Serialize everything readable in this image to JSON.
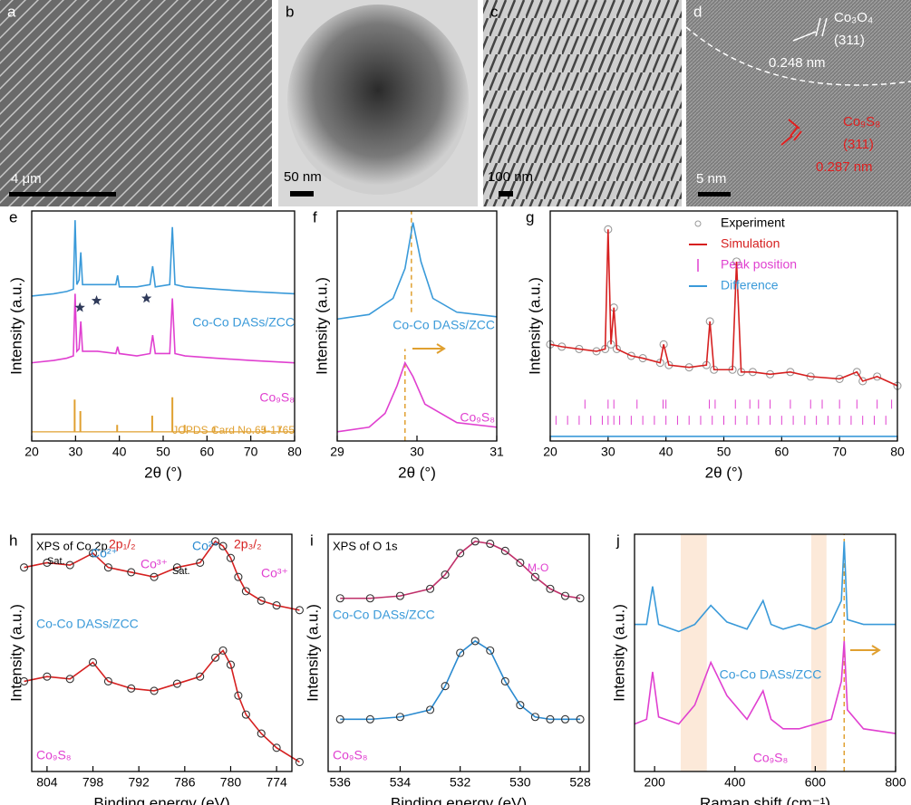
{
  "images": [
    {
      "letter": "a",
      "texts": [
        {
          "text": "4 μm",
          "color": "#ffffff"
        }
      ]
    },
    {
      "letter": "b",
      "texts": [
        {
          "text": "50 nm",
          "color": "#000000"
        }
      ]
    },
    {
      "letter": "c",
      "texts": [
        {
          "text": "100 nm",
          "color": "#000000"
        }
      ]
    },
    {
      "letter": "d",
      "texts": [
        {
          "text": "5 nm",
          "color": "#ffffff"
        },
        {
          "text": "Co₃O₄",
          "color": "#ffffff"
        },
        {
          "text": "(311)",
          "color": "#ffffff"
        },
        {
          "text": "0.248 nm",
          "color": "#ffffff"
        },
        {
          "text": "Co₉S₈",
          "color": "#e02020"
        },
        {
          "text": "(311)",
          "color": "#e02020"
        },
        {
          "text": "0.287 nm",
          "color": "#e02020"
        }
      ]
    }
  ],
  "chart_data": [
    {
      "type": "line",
      "panel": "e",
      "xlabel": "2θ (°)",
      "ylabel": "Intensity (a.u.)",
      "xlim": [
        20,
        80
      ],
      "ylim": [
        0,
        100
      ],
      "xticks": [
        20,
        30,
        40,
        50,
        60,
        70,
        80
      ],
      "series": [
        {
          "color": "#3a9ad9",
          "style": "line",
          "x": [
            20,
            25,
            28,
            29.5,
            29.9,
            30.3,
            30.8,
            31.2,
            31.6,
            35,
            39.2,
            39.6,
            40,
            44,
            47,
            47.6,
            48.2,
            51.5,
            52.1,
            52.7,
            55,
            62,
            70,
            80
          ],
          "values": [
            63,
            64,
            65,
            66,
            96,
            68,
            70,
            82,
            68,
            68,
            68,
            72,
            67,
            67,
            68,
            76,
            67,
            68,
            93,
            68,
            67,
            66,
            65,
            64
          ]
        },
        {
          "color": "#e040d0",
          "style": "line",
          "x": [
            20,
            25,
            28,
            29.5,
            29.9,
            30.3,
            30.8,
            31.2,
            31.6,
            35,
            39.2,
            39.6,
            40,
            44,
            47,
            47.6,
            48.2,
            51.5,
            52.1,
            52.7,
            55,
            62,
            70,
            80
          ],
          "values": [
            34,
            35,
            36,
            37,
            64,
            39,
            40,
            52,
            39,
            39,
            38,
            41,
            38,
            37,
            38,
            46,
            38,
            38,
            62,
            38,
            37,
            36,
            35,
            34
          ]
        },
        {
          "color": "#e0a030",
          "style": "sticks",
          "baseline": 4,
          "x": [
            29.8,
            31.1,
            39.5,
            47.5,
            52.1,
            54.9,
            61.7,
            73.2,
            76.6
          ],
          "values": [
            14,
            9,
            3,
            7,
            15,
            3,
            2,
            2,
            2
          ]
        }
      ],
      "stars": {
        "color": "#2f3a5a",
        "x": [
          31,
          34.8,
          46.2
        ],
        "values": [
          58,
          61,
          62
        ]
      },
      "labels": [
        {
          "text": "Co-Co DASs/ZCC",
          "color": "#3a9ad9"
        },
        {
          "text": "Co₉S₈",
          "color": "#e040d0"
        },
        {
          "text": "JCPDS Card No.65-1765",
          "color": "#e0a030"
        }
      ]
    },
    {
      "type": "line",
      "panel": "f",
      "xlabel": "2θ (°)",
      "ylabel": "Intensity (a.u.)",
      "xlim": [
        29,
        31
      ],
      "ylim": [
        0,
        100
      ],
      "xticks": [
        29,
        30,
        31
      ],
      "series": [
        {
          "color": "#3a9ad9",
          "style": "line",
          "x": [
            29,
            29.4,
            29.7,
            29.85,
            29.95,
            30.05,
            30.2,
            30.5,
            31
          ],
          "values": [
            53,
            55,
            62,
            75,
            95,
            78,
            62,
            56,
            54
          ]
        },
        {
          "color": "#e040d0",
          "style": "line",
          "x": [
            29,
            29.4,
            29.6,
            29.75,
            29.85,
            29.95,
            30.1,
            30.5,
            31
          ],
          "values": [
            4,
            6,
            12,
            24,
            34,
            28,
            16,
            8,
            6
          ]
        }
      ],
      "peak_lines": [
        {
          "x": 29.93,
          "range": [
            56,
            100
          ]
        },
        {
          "x": 29.85,
          "range": [
            0,
            40
          ]
        }
      ],
      "labels": [
        {
          "text": "Co-Co DASs/ZCC",
          "color": "#3a9ad9"
        },
        {
          "text": "Co₉S₈",
          "color": "#e040d0"
        }
      ]
    },
    {
      "type": "line",
      "panel": "g",
      "xlabel": "2θ (°)",
      "ylabel": "Intensity (a.u.)",
      "xlim": [
        20,
        80
      ],
      "ylim": [
        0,
        100
      ],
      "xticks": [
        20,
        30,
        40,
        50,
        60,
        70,
        80
      ],
      "series": [
        {
          "name": "Experiment",
          "color": "#999999",
          "style": "circles",
          "x": [
            20,
            22,
            25,
            28,
            29.5,
            30,
            30.5,
            31,
            31.5,
            34,
            36,
            39,
            39.6,
            40.5,
            44,
            47,
            47.6,
            48.3,
            51.5,
            52.2,
            53,
            55,
            58,
            61.5,
            65,
            70,
            73,
            74,
            76.5,
            80
          ],
          "values": [
            42,
            41,
            40,
            39,
            40,
            92,
            42,
            58,
            40,
            37,
            36,
            34,
            42,
            33,
            32,
            33,
            52,
            31,
            31,
            78,
            30,
            30,
            29,
            30,
            28,
            27,
            30,
            26,
            28,
            24
          ]
        },
        {
          "name": "Simulation",
          "color": "#d62020",
          "style": "line",
          "x": [
            20,
            22,
            25,
            28,
            29.5,
            30,
            30.5,
            31,
            31.5,
            34,
            36,
            39,
            39.6,
            40.5,
            44,
            47,
            47.6,
            48.3,
            51.5,
            52.2,
            53,
            55,
            58,
            61.5,
            65,
            70,
            73,
            74,
            76.5,
            80
          ],
          "values": [
            42,
            41,
            40,
            39,
            40,
            92,
            42,
            58,
            40,
            37,
            36,
            34,
            42,
            33,
            32,
            33,
            52,
            31,
            31,
            78,
            30,
            30,
            29,
            30,
            28,
            27,
            30,
            26,
            28,
            24
          ]
        },
        {
          "name": "Peak position",
          "color": "#e040d0",
          "style": "ticks",
          "rows": [
            {
              "level": 16,
              "x": [
                26,
                30,
                31,
                35,
                39.5,
                40,
                47.5,
                48.5,
                52,
                54.5,
                56,
                58,
                61.5,
                65,
                67,
                70,
                73,
                76.5,
                79
              ]
            },
            {
              "level": 9,
              "x": [
                21,
                23,
                25,
                27,
                29,
                30,
                31,
                32,
                34,
                36,
                38,
                40,
                42,
                44,
                46,
                48,
                50,
                52,
                54,
                56,
                58,
                60,
                62,
                64,
                66,
                68,
                70,
                72,
                74,
                76,
                78,
                80
              ]
            }
          ]
        },
        {
          "name": "Difference",
          "color": "#3a9ad9",
          "style": "line",
          "x": [
            20,
            40,
            60,
            80
          ],
          "values": [
            2,
            2,
            2,
            2
          ]
        }
      ]
    },
    {
      "type": "line",
      "panel": "h",
      "xlabel": "Binding energy (eV)",
      "ylabel": "Intensity (a.u.)",
      "xlim": [
        806,
        772
      ],
      "ylim": [
        0,
        100
      ],
      "xticks": [
        804,
        798,
        792,
        786,
        780,
        774
      ],
      "series": [
        {
          "color": "#d62020",
          "style": "line",
          "x": [
            807,
            804,
            801,
            798,
            796,
            793,
            790,
            787,
            784,
            782,
            781,
            780,
            779,
            778,
            776,
            774,
            771
          ],
          "values": [
            86,
            88,
            87,
            92,
            86,
            84,
            82,
            86,
            88,
            97,
            95,
            90,
            82,
            76,
            72,
            70,
            68
          ]
        },
        {
          "color": "#333333",
          "style": "circles",
          "x": [
            807,
            804,
            801,
            798,
            796,
            793,
            790,
            787,
            784,
            782,
            781,
            780,
            779,
            778,
            776,
            774,
            771
          ],
          "values": [
            86,
            88,
            87,
            92,
            86,
            84,
            82,
            86,
            88,
            97,
            95,
            90,
            82,
            76,
            72,
            70,
            68
          ]
        },
        {
          "color": "#d62020",
          "style": "line",
          "x": [
            807,
            804,
            801,
            798,
            796,
            793,
            790,
            787,
            784,
            782,
            781,
            780,
            779,
            778,
            776,
            774,
            771
          ],
          "values": [
            38,
            40,
            39,
            46,
            38,
            35,
            34,
            37,
            40,
            48,
            51,
            45,
            32,
            24,
            16,
            10,
            4
          ]
        },
        {
          "color": "#333333",
          "style": "circles",
          "x": [
            807,
            804,
            801,
            798,
            796,
            793,
            790,
            787,
            784,
            782,
            781,
            780,
            779,
            778,
            776,
            774,
            771
          ],
          "values": [
            38,
            40,
            39,
            46,
            38,
            35,
            34,
            37,
            40,
            48,
            51,
            45,
            32,
            24,
            16,
            10,
            4
          ]
        }
      ],
      "labels": [
        {
          "text": "XPS of Co 2p",
          "color": "#000000"
        },
        {
          "text": "Sat.",
          "color": "#000000"
        },
        {
          "text": "Co²⁺",
          "color": "#2a8ad0"
        },
        {
          "text": "2p₁/₂",
          "color": "#d62020"
        },
        {
          "text": "Co³⁺",
          "color": "#e040d0"
        },
        {
          "text": "Sat.",
          "color": "#000000"
        },
        {
          "text": "Co²⁺",
          "color": "#2a8ad0"
        },
        {
          "text": "2p₃/₂",
          "color": "#d62020"
        },
        {
          "text": "Co³⁺",
          "color": "#e040d0"
        },
        {
          "text": "Co-Co DASs/ZCC",
          "color": "#3a9ad9"
        },
        {
          "text": "Co₉S₈",
          "color": "#e040d0"
        }
      ]
    },
    {
      "type": "line",
      "panel": "i",
      "xlabel": "Binding energy (eV)",
      "ylabel": "Intensity (a.u.)",
      "xlim": [
        536.4,
        527.7
      ],
      "ylim": [
        0,
        100
      ],
      "xticks": [
        536,
        534,
        532,
        530,
        528
      ],
      "series": [
        {
          "color": "#c0306a",
          "style": "line",
          "x": [
            536,
            535,
            534,
            533,
            532.5,
            532,
            531.5,
            531,
            530.5,
            530,
            529.5,
            529,
            528.5,
            528
          ],
          "values": [
            73,
            73,
            74,
            77,
            83,
            92,
            97,
            96,
            93,
            88,
            82,
            77,
            74,
            73
          ]
        },
        {
          "color": "#333333",
          "style": "circles",
          "x": [
            536,
            535,
            534,
            533,
            532.5,
            532,
            531.5,
            531,
            530.5,
            530,
            529.5,
            529,
            528.5,
            528
          ],
          "values": [
            73,
            73,
            74,
            77,
            83,
            92,
            97,
            96,
            93,
            88,
            82,
            77,
            74,
            73
          ]
        },
        {
          "color": "#2a8ad0",
          "style": "line",
          "x": [
            536,
            535,
            534,
            533,
            532.5,
            532,
            531.5,
            531,
            530.5,
            530,
            529.5,
            529,
            528.5,
            528
          ],
          "values": [
            22,
            22,
            23,
            26,
            36,
            50,
            55,
            51,
            38,
            28,
            23,
            22,
            22,
            22
          ]
        },
        {
          "color": "#333333",
          "style": "circles",
          "x": [
            536,
            535,
            534,
            533,
            532.5,
            532,
            531.5,
            531,
            530.5,
            530,
            529.5,
            529,
            528.5,
            528
          ],
          "values": [
            22,
            22,
            23,
            26,
            36,
            50,
            55,
            51,
            38,
            28,
            23,
            22,
            22,
            22
          ]
        }
      ],
      "labels": [
        {
          "text": "XPS of O 1s",
          "color": "#000000"
        },
        {
          "text": "M-O",
          "color": "#e040d0"
        },
        {
          "text": "Co-Co DASs/ZCC",
          "color": "#3a9ad9"
        },
        {
          "text": "Co₉S₈",
          "color": "#e040d0"
        }
      ]
    },
    {
      "type": "line",
      "panel": "j",
      "xlabel": "Raman shift (cm⁻¹)",
      "ylabel": "Intensity (a.u.)",
      "xlim": [
        150,
        800
      ],
      "ylim": [
        0,
        100
      ],
      "xticks": [
        200,
        400,
        600,
        800
      ],
      "shaded_ranges": [
        [
          265,
          330
        ],
        [
          590,
          628
        ]
      ],
      "series": [
        {
          "color": "#3a9ad9",
          "style": "line",
          "x": [
            150,
            180,
            195,
            210,
            260,
            300,
            340,
            380,
            430,
            470,
            490,
            520,
            560,
            600,
            640,
            665,
            672,
            680,
            720,
            800
          ],
          "values": [
            62,
            62,
            78,
            62,
            59,
            62,
            70,
            63,
            60,
            72,
            62,
            60,
            62,
            60,
            63,
            72,
            97,
            64,
            62,
            62
          ]
        },
        {
          "color": "#e040d0",
          "style": "line",
          "x": [
            150,
            180,
            195,
            210,
            260,
            300,
            340,
            380,
            430,
            470,
            490,
            520,
            560,
            600,
            640,
            665,
            672,
            680,
            720,
            800
          ],
          "values": [
            20,
            22,
            42,
            23,
            20,
            28,
            46,
            32,
            22,
            34,
            22,
            18,
            18,
            20,
            22,
            38,
            55,
            26,
            18,
            16
          ]
        }
      ],
      "peak_lines": [
        {
          "x": 672,
          "range": [
            0,
            100
          ]
        }
      ],
      "labels": [
        {
          "text": "Co-Co DASs/ZCC",
          "color": "#3a9ad9"
        },
        {
          "text": "Co₉S₈",
          "color": "#e040d0"
        }
      ]
    }
  ]
}
